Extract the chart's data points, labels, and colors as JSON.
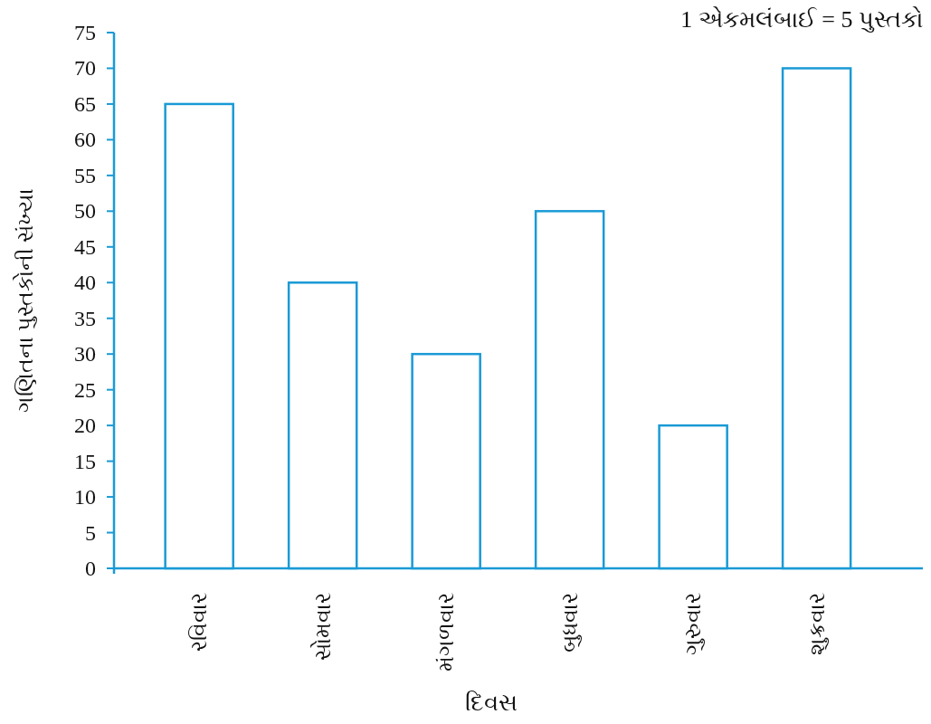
{
  "chart_data": {
    "type": "bar",
    "xlabel": "દિવસ",
    "ylabel": "ગણિતના પુસ્તકોની સંખ્યા",
    "annotations": [
      "1 એકમલંબાઈ = 5 પુસ્તકો"
    ],
    "categories": [
      "રવિવાર",
      "સોમવાર",
      "મંગળવાર",
      "બુધવાર",
      "ગુરુવાર",
      "શુક્રવાર"
    ],
    "values": [
      65,
      40,
      30,
      50,
      20,
      70
    ],
    "color": "#1a9ad6",
    "ylim": [
      0,
      75
    ],
    "yticks": [
      0,
      5,
      10,
      15,
      20,
      25,
      30,
      35,
      40,
      45,
      50,
      55,
      60,
      65,
      70,
      75
    ],
    "grid": false
  }
}
